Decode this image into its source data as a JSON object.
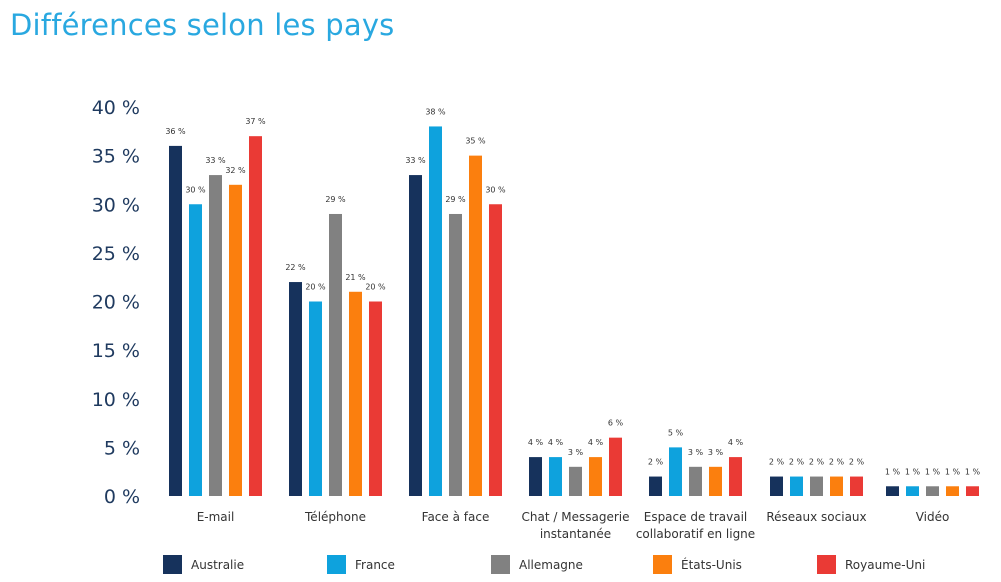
{
  "page": {
    "title": "Différences selon les pays"
  },
  "chart_data": {
    "type": "bar",
    "title": "Différences selon les pays",
    "xlabel": "",
    "ylabel": "",
    "ylim": [
      0,
      40
    ],
    "yticks": [
      "0 %",
      "5 %",
      "10 %",
      "15 %",
      "20 %",
      "25 %",
      "30 %",
      "35 %",
      "40 %"
    ],
    "grid": false,
    "legend": "bottom",
    "categories": [
      [
        "E-mail"
      ],
      [
        "Téléphone"
      ],
      [
        "Face à face"
      ],
      [
        "Chat / Messagerie",
        "instantanée"
      ],
      [
        "Espace de travail",
        "collaboratif en ligne"
      ],
      [
        "Réseaux sociaux"
      ],
      [
        "Vidéo"
      ]
    ],
    "series": [
      {
        "name": "Australie",
        "color": "#16325c",
        "values": [
          36,
          22,
          33,
          4,
          2,
          2,
          1
        ]
      },
      {
        "name": "France",
        "color": "#0ea2dd",
        "values": [
          30,
          20,
          38,
          4,
          5,
          2,
          1
        ]
      },
      {
        "name": "Allemagne",
        "color": "#818181",
        "values": [
          33,
          29,
          29,
          3,
          3,
          2,
          1
        ]
      },
      {
        "name": "États-Unis",
        "color": "#fb7f0e",
        "values": [
          32,
          21,
          35,
          4,
          3,
          2,
          1
        ]
      },
      {
        "name": "Royaume-Uni",
        "color": "#ea3a35",
        "values": [
          37,
          20,
          30,
          6,
          4,
          2,
          1
        ]
      }
    ],
    "value_suffix": " %"
  }
}
